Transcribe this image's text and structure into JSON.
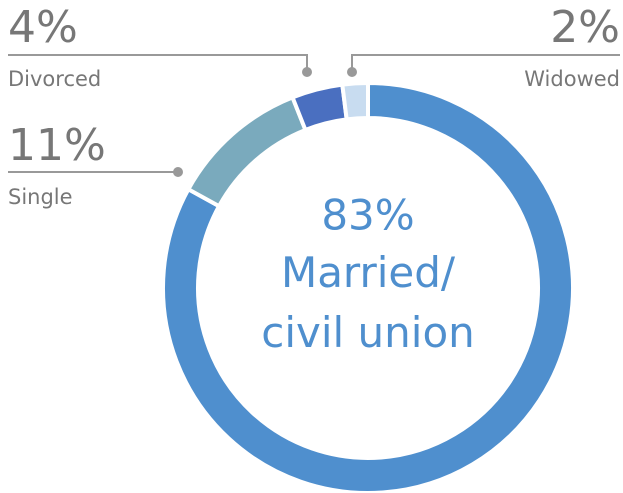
{
  "chart_data": {
    "type": "donut",
    "categories": [
      "Married/ civil union",
      "Single",
      "Divorced",
      "Widowed"
    ],
    "values": [
      83,
      11,
      4,
      2
    ],
    "value_labels": [
      "83%",
      "11%",
      "4%",
      "2%"
    ],
    "colors": [
      "#4f8fce",
      "#7aaabd",
      "#4a6fc0",
      "#c8dcf0"
    ]
  }
}
